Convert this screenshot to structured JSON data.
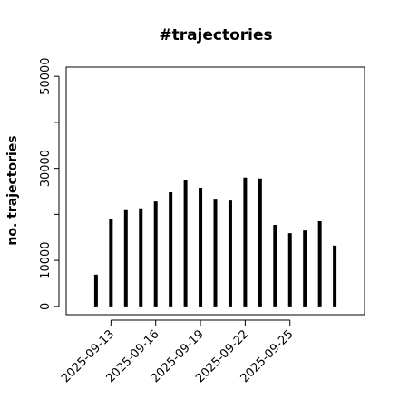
{
  "chart_data": {
    "type": "histline",
    "title": "#trajectories",
    "y_label": "no. trajectories",
    "x": [
      "2025-09-12",
      "2025-09-13",
      "2025-09-14",
      "2025-09-15",
      "2025-09-16",
      "2025-09-17",
      "2025-09-18",
      "2025-09-19",
      "2025-09-20",
      "2025-09-21",
      "2025-09-22",
      "2025-09-23",
      "2025-09-24",
      "2025-09-25",
      "2025-09-26",
      "2025-09-27",
      "2025-09-28"
    ],
    "values": [
      6900,
      18900,
      20900,
      21300,
      22800,
      24800,
      27400,
      25800,
      23200,
      23000,
      28000,
      27800,
      17700,
      15900,
      16500,
      18500,
      13200
    ],
    "color": "#000000",
    "xlim": [
      "2025-09-10",
      "2025-09-30"
    ],
    "xticks": [
      "2025-09-13",
      "2025-09-16",
      "2025-09-19",
      "2025-09-22",
      "2025-09-25"
    ],
    "ylim": [
      -1800,
      52000
    ],
    "yticks": [
      0,
      10000,
      30000,
      50000
    ],
    "yminor_ticks": [
      20000,
      40000
    ]
  }
}
